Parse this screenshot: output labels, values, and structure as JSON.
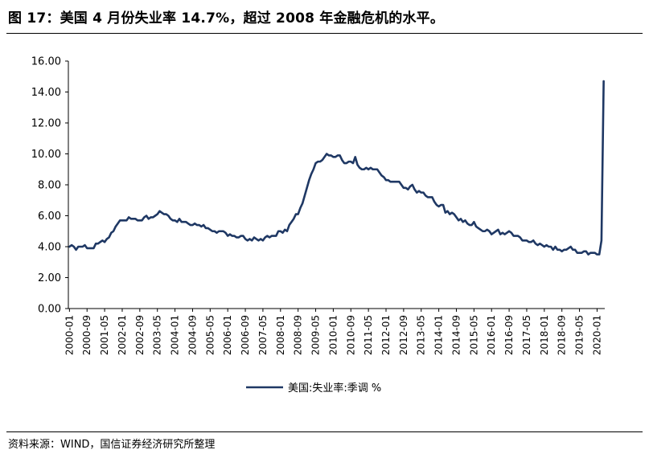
{
  "header": {
    "title": "图 17：美国 4 月份失业率 14.7%，超过 2008 年金融危机的水平。"
  },
  "footer": {
    "source": "资料来源：WIND，国信证券经济研究所整理"
  },
  "chart_data": {
    "type": "line",
    "title": "",
    "xlabel": "",
    "ylabel": "",
    "ylim": [
      0,
      16
    ],
    "yticks": [
      "0.00",
      "2.00",
      "4.00",
      "6.00",
      "8.00",
      "10.00",
      "12.00",
      "14.00",
      "16.00"
    ],
    "xticks": [
      "2000-01",
      "2000-09",
      "2001-05",
      "2002-01",
      "2002-09",
      "2003-05",
      "2004-01",
      "2004-09",
      "2005-05",
      "2006-01",
      "2006-09",
      "2007-05",
      "2008-01",
      "2008-09",
      "2009-05",
      "2010-01",
      "2010-09",
      "2011-05",
      "2012-01",
      "2012-09",
      "2013-05",
      "2014-01",
      "2014-09",
      "2015-05",
      "2016-01",
      "2016-09",
      "2017-05",
      "2018-01",
      "2018-09",
      "2019-05",
      "2020-01"
    ],
    "grid": false,
    "legend": "bottom-center",
    "color": "#1f3864",
    "series": [
      {
        "name": "美国:失业率:季调 %",
        "start": "2000-01",
        "frequency": "monthly",
        "values": [
          4.0,
          4.1,
          4.0,
          3.8,
          4.0,
          4.0,
          4.0,
          4.1,
          3.9,
          3.9,
          3.9,
          3.9,
          4.2,
          4.2,
          4.3,
          4.4,
          4.3,
          4.5,
          4.6,
          4.9,
          5.0,
          5.3,
          5.5,
          5.7,
          5.7,
          5.7,
          5.7,
          5.9,
          5.8,
          5.8,
          5.8,
          5.7,
          5.7,
          5.7,
          5.9,
          6.0,
          5.8,
          5.9,
          5.9,
          6.0,
          6.1,
          6.3,
          6.2,
          6.1,
          6.1,
          6.0,
          5.8,
          5.7,
          5.7,
          5.6,
          5.8,
          5.6,
          5.6,
          5.6,
          5.5,
          5.4,
          5.4,
          5.5,
          5.4,
          5.4,
          5.3,
          5.4,
          5.2,
          5.2,
          5.1,
          5.0,
          5.0,
          4.9,
          5.0,
          5.0,
          5.0,
          4.9,
          4.7,
          4.8,
          4.7,
          4.7,
          4.6,
          4.6,
          4.7,
          4.7,
          4.5,
          4.4,
          4.5,
          4.4,
          4.6,
          4.5,
          4.4,
          4.5,
          4.4,
          4.6,
          4.7,
          4.6,
          4.7,
          4.7,
          4.7,
          5.0,
          5.0,
          4.9,
          5.1,
          5.0,
          5.4,
          5.6,
          5.8,
          6.1,
          6.1,
          6.5,
          6.8,
          7.3,
          7.8,
          8.3,
          8.7,
          9.0,
          9.4,
          9.5,
          9.5,
          9.6,
          9.8,
          10.0,
          9.9,
          9.9,
          9.8,
          9.8,
          9.9,
          9.9,
          9.6,
          9.4,
          9.4,
          9.5,
          9.5,
          9.4,
          9.8,
          9.3,
          9.1,
          9.0,
          9.0,
          9.1,
          9.0,
          9.1,
          9.0,
          9.0,
          9.0,
          8.8,
          8.6,
          8.5,
          8.3,
          8.3,
          8.2,
          8.2,
          8.2,
          8.2,
          8.2,
          8.0,
          7.8,
          7.8,
          7.7,
          7.9,
          8.0,
          7.7,
          7.5,
          7.6,
          7.5,
          7.5,
          7.3,
          7.2,
          7.2,
          7.2,
          6.9,
          6.7,
          6.6,
          6.7,
          6.7,
          6.2,
          6.3,
          6.1,
          6.2,
          6.1,
          5.9,
          5.7,
          5.8,
          5.6,
          5.7,
          5.5,
          5.4,
          5.4,
          5.6,
          5.3,
          5.2,
          5.1,
          5.0,
          5.0,
          5.1,
          5.0,
          4.8,
          4.9,
          5.0,
          5.1,
          4.8,
          4.9,
          4.8,
          4.9,
          5.0,
          4.9,
          4.7,
          4.7,
          4.7,
          4.6,
          4.4,
          4.4,
          4.4,
          4.3,
          4.3,
          4.4,
          4.2,
          4.1,
          4.2,
          4.1,
          4.0,
          4.1,
          4.0,
          4.0,
          3.8,
          4.0,
          3.8,
          3.8,
          3.7,
          3.8,
          3.8,
          3.9,
          4.0,
          3.8,
          3.8,
          3.6,
          3.6,
          3.6,
          3.7,
          3.7,
          3.5,
          3.6,
          3.6,
          3.6,
          3.5,
          3.5,
          4.4,
          14.7
        ]
      }
    ]
  }
}
